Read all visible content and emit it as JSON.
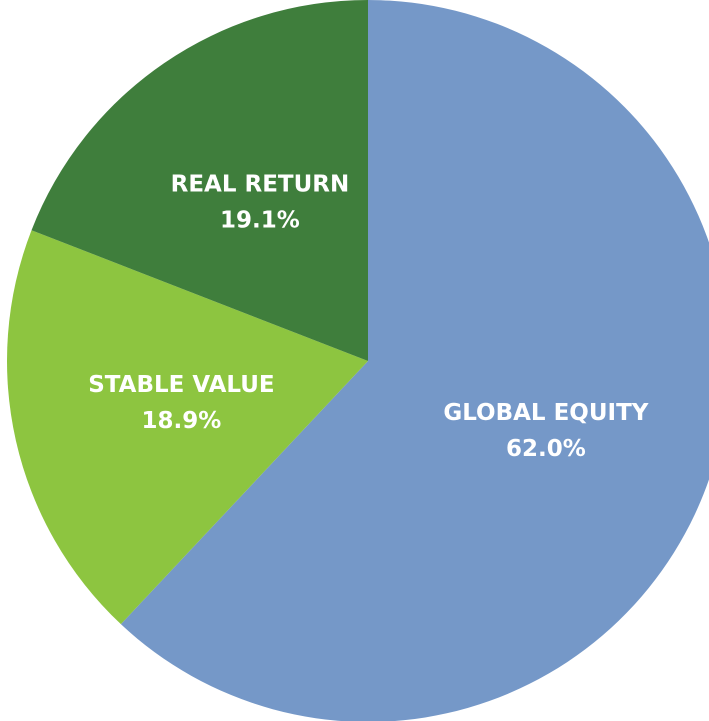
{
  "chart_data": {
    "type": "pie",
    "categories": [
      "GLOBAL EQUITY",
      "STABLE VALUE",
      "REAL RETURN"
    ],
    "values": [
      62.0,
      18.9,
      19.1
    ],
    "value_labels": [
      "62.0%",
      "18.9%",
      "19.1%"
    ],
    "colors": [
      "#7598c8",
      "#8dc540",
      "#3f7e3c"
    ]
  }
}
